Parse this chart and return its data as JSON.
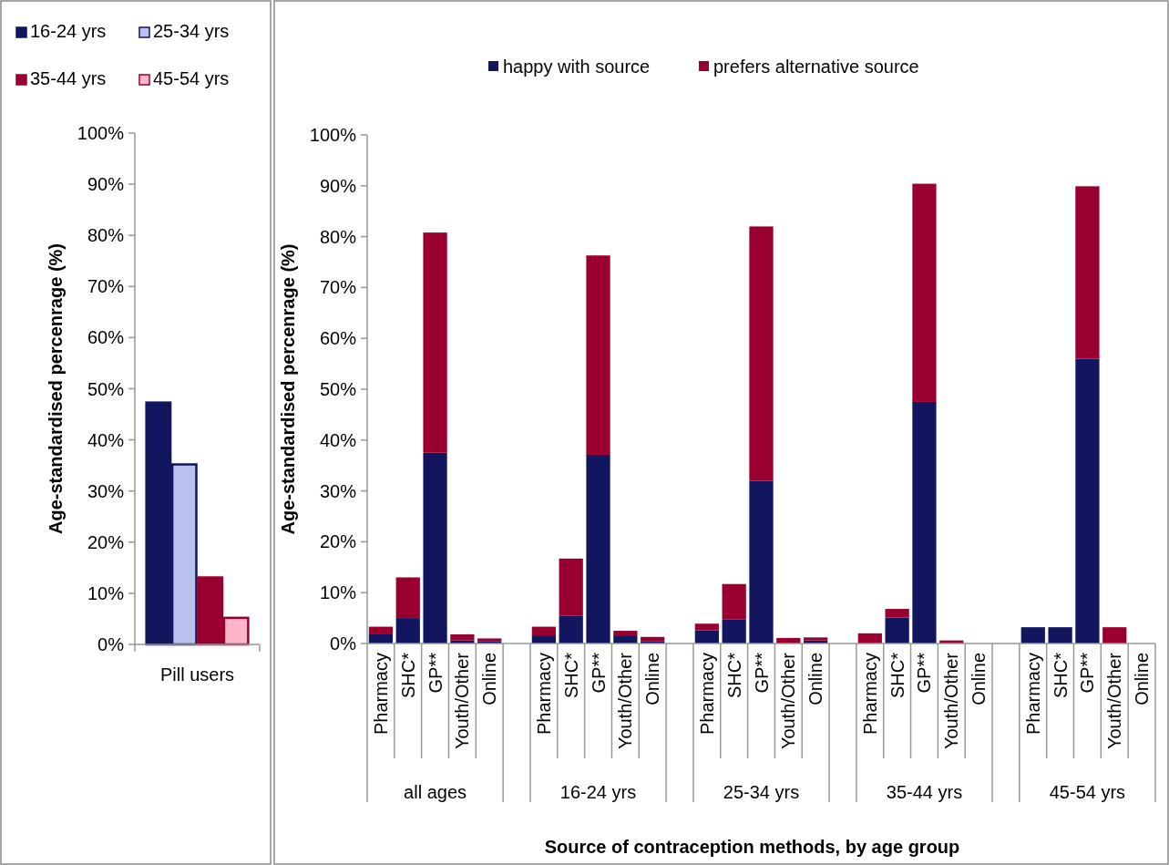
{
  "chart_data": [
    {
      "type": "bar",
      "ylabel": "Age-standardised percenrage (%)",
      "categories": [
        "Pill users"
      ],
      "series": [
        {
          "name": "16-24 yrs",
          "color": "#11165e",
          "values": [
            47.3
          ]
        },
        {
          "name": "25-34 yrs",
          "color": "#b9c1ef",
          "values": [
            35.2
          ]
        },
        {
          "name": "35-44 yrs",
          "color": "#990030",
          "values": [
            13.1
          ]
        },
        {
          "name": "45-54 yrs",
          "color": "#ffb5c9",
          "values": [
            5.2
          ]
        }
      ],
      "ylim": [
        0,
        100
      ],
      "yticks": [
        {
          "value": 0,
          "label": "0%"
        },
        {
          "value": 10,
          "label": "10%"
        },
        {
          "value": 20,
          "label": "20%"
        },
        {
          "value": 30,
          "label": "30%"
        },
        {
          "value": 40,
          "label": "40%"
        },
        {
          "value": 50,
          "label": "50%"
        },
        {
          "value": 60,
          "label": "60%"
        },
        {
          "value": 70,
          "label": "70%"
        },
        {
          "value": 80,
          "label": "80%"
        },
        {
          "value": 90,
          "label": "90%"
        },
        {
          "value": 100,
          "label": "100%"
        }
      ],
      "grid": false,
      "legend": "top"
    },
    {
      "type": "bar",
      "stacked": true,
      "xlabel": "Source of contraception methods, by age group",
      "ylabel": "Age-standardised percenrage (%)",
      "categories": [
        "Pharmacy",
        "SHC*",
        "GP**",
        "Youth/Other",
        "Online",
        null,
        "Pharmacy",
        "SHC*",
        "GP**",
        "Youth/Other",
        "Online",
        null,
        "Pharmacy",
        "SHC*",
        "GP**",
        "Youth/Other",
        "Online",
        null,
        "Pharmacy",
        "SHC*",
        "GP**",
        "Youth/Other",
        "Online",
        null,
        "Pharmacy",
        "SHC*",
        "GP**",
        "Youth/Other",
        "Online"
      ],
      "annotations": [
        "all ages",
        "16-24 yrs",
        "25-34 yrs",
        "35-44 yrs",
        "45-54 yrs"
      ],
      "series": [
        {
          "name": "happy with source",
          "color": "#11165e",
          "values": [
            1.8,
            5.0,
            37.5,
            0.6,
            0.4,
            null,
            1.6,
            5.5,
            37.1,
            1.6,
            0.4,
            null,
            2.6,
            4.7,
            32.0,
            0,
            0.6,
            null,
            0,
            5.1,
            47.5,
            0,
            0,
            null,
            3.2,
            3.2,
            56.0,
            0,
            0
          ]
        },
        {
          "name": "prefers alternative source",
          "color": "#990030",
          "values": [
            1.5,
            8.0,
            43.3,
            1.2,
            0.6,
            null,
            1.7,
            11.2,
            39.2,
            0.9,
            0.9,
            null,
            1.3,
            7.0,
            50.0,
            1.1,
            0.6,
            null,
            2.0,
            1.7,
            42.9,
            0.6,
            0,
            null,
            0,
            0,
            33.9,
            3.2,
            0
          ]
        }
      ],
      "ylim": [
        0,
        100
      ],
      "yticks": [
        {
          "value": 0,
          "label": "0%"
        },
        {
          "value": 10,
          "label": "10%"
        },
        {
          "value": 20,
          "label": "20%"
        },
        {
          "value": 30,
          "label": "30%"
        },
        {
          "value": 40,
          "label": "40%"
        },
        {
          "value": 50,
          "label": "50%"
        },
        {
          "value": 60,
          "label": "60%"
        },
        {
          "value": 70,
          "label": "70%"
        },
        {
          "value": 80,
          "label": "80%"
        },
        {
          "value": 90,
          "label": "90%"
        },
        {
          "value": 100,
          "label": "100%"
        }
      ],
      "grid": false,
      "legend": "top"
    }
  ]
}
